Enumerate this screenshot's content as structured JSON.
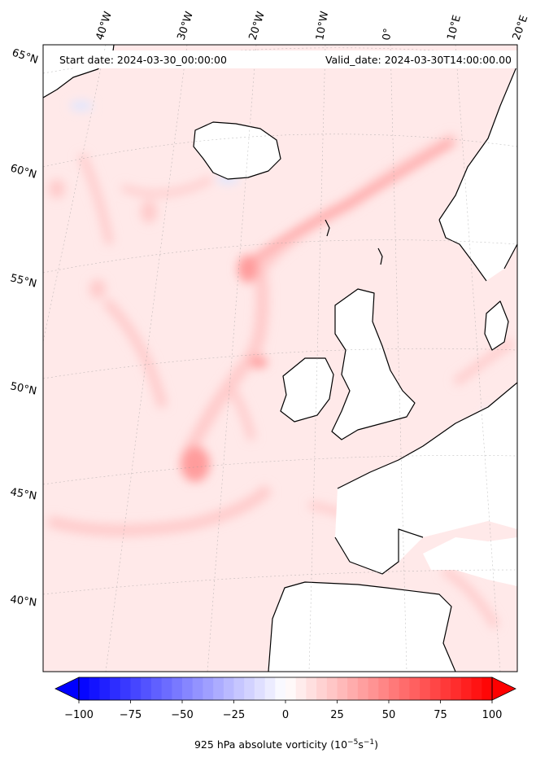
{
  "header": {
    "start_label": "Start date: 2024-03-30_00:00:00",
    "valid_label": "Valid_date: 2024-03-30T14:00:00.00"
  },
  "longitude_labels": [
    "40°W",
    "30°W",
    "20°W",
    "10°W",
    "0°",
    "10°E",
    "20°E"
  ],
  "latitude_labels": [
    "65°N",
    "60°N",
    "55°N",
    "50°N",
    "45°N",
    "40°N"
  ],
  "colorbar": {
    "title": "925 hPa absolute vorticity (10",
    "title_exp1": "−5",
    "title_mid": "s",
    "title_exp2": "−1",
    "title_end": ")",
    "ticks": [
      "−100",
      "−75",
      "−50",
      "−25",
      "0",
      "25",
      "50",
      "75",
      "100"
    ],
    "vmin": -100,
    "vmax": 100,
    "low_color": "#0000ff",
    "mid_color": "#ffffff",
    "high_color": "#ff0000",
    "levels": 40
  },
  "colors": {
    "background_field": "#ffe9e9",
    "positive_medium": "#ffcaca",
    "positive_strong": "#ff9c9c",
    "negative_weak": "#dfe6ff",
    "land": "#ffffff",
    "coastline": "#000000"
  }
}
